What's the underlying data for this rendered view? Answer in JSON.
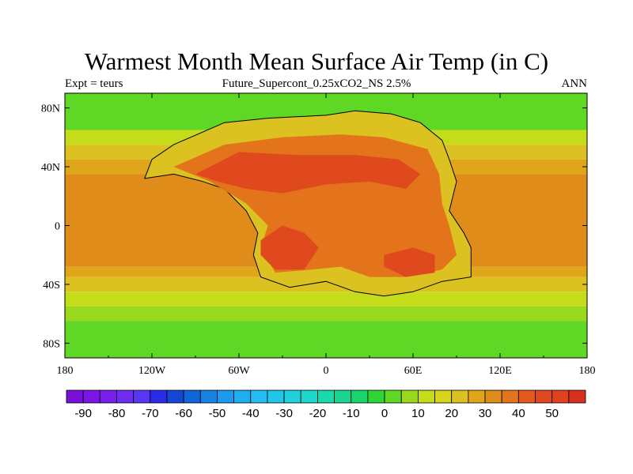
{
  "chart_data": {
    "type": "heatmap",
    "title": "Warmest Month Mean Surface Air Temp (in C)",
    "subtitle_center": "Future_Supercont_0.25xCO2_NS 2.5%",
    "subtitle_left": "Expt = teurs",
    "subtitle_right": "ANN",
    "projection": "cylindrical-equidistant",
    "xlim": [
      -180,
      180
    ],
    "ylim": [
      -90,
      90
    ],
    "x_ticks": [
      {
        "value": -180,
        "label": "180"
      },
      {
        "value": -120,
        "label": "120W"
      },
      {
        "value": -60,
        "label": "60W"
      },
      {
        "value": 0,
        "label": "0"
      },
      {
        "value": 60,
        "label": "60E"
      },
      {
        "value": 120,
        "label": "120E"
      },
      {
        "value": 180,
        "label": "180"
      }
    ],
    "y_ticks": [
      {
        "value": 80,
        "label": "80N"
      },
      {
        "value": 40,
        "label": "40N"
      },
      {
        "value": 0,
        "label": "0"
      },
      {
        "value": -40,
        "label": "40S"
      },
      {
        "value": -80,
        "label": "80S"
      }
    ],
    "zonal_bands": [
      {
        "lat_range": [
          65,
          90
        ],
        "value": 0
      },
      {
        "lat_range": [
          55,
          65
        ],
        "value": 10
      },
      {
        "lat_range": [
          45,
          55
        ],
        "value": 20
      },
      {
        "lat_range": [
          35,
          45
        ],
        "value": 25
      },
      {
        "lat_range": [
          -28,
          35
        ],
        "value": 30
      },
      {
        "lat_range": [
          -35,
          -28
        ],
        "value": 25
      },
      {
        "lat_range": [
          -45,
          -35
        ],
        "value": 20
      },
      {
        "lat_range": [
          -55,
          -45
        ],
        "value": 10
      },
      {
        "lat_range": [
          -65,
          -55
        ],
        "value": 5
      },
      {
        "lat_range": [
          -90,
          -65
        ],
        "value": 0
      }
    ],
    "land_regions": [
      {
        "label": "supercontinent-outer",
        "value": 20,
        "outline": [
          [
            -120,
            45
          ],
          [
            -105,
            55
          ],
          [
            -70,
            70
          ],
          [
            -40,
            73
          ],
          [
            0,
            75
          ],
          [
            20,
            78
          ],
          [
            45,
            76
          ],
          [
            65,
            70
          ],
          [
            80,
            58
          ],
          [
            85,
            45
          ],
          [
            90,
            30
          ],
          [
            85,
            10
          ],
          [
            95,
            -5
          ],
          [
            100,
            -15
          ],
          [
            100,
            -35
          ],
          [
            80,
            -38
          ],
          [
            60,
            -45
          ],
          [
            40,
            -48
          ],
          [
            20,
            -45
          ],
          [
            0,
            -38
          ],
          [
            -25,
            -42
          ],
          [
            -45,
            -35
          ],
          [
            -50,
            -20
          ],
          [
            -47,
            -5
          ],
          [
            -55,
            10
          ],
          [
            -70,
            25
          ],
          [
            -85,
            30
          ],
          [
            -105,
            35
          ],
          [
            -125,
            32
          ]
        ]
      },
      {
        "label": "supercontinent-warm",
        "value": 35,
        "outline": [
          [
            -105,
            40
          ],
          [
            -70,
            55
          ],
          [
            -30,
            60
          ],
          [
            10,
            62
          ],
          [
            40,
            60
          ],
          [
            70,
            52
          ],
          [
            78,
            35
          ],
          [
            80,
            15
          ],
          [
            85,
            0
          ],
          [
            90,
            -20
          ],
          [
            80,
            -30
          ],
          [
            55,
            -35
          ],
          [
            30,
            -35
          ],
          [
            10,
            -28
          ],
          [
            -10,
            -30
          ],
          [
            -35,
            -32
          ],
          [
            -45,
            -15
          ],
          [
            -40,
            0
          ],
          [
            -55,
            15
          ],
          [
            -80,
            30
          ]
        ]
      },
      {
        "label": "hot-core-north",
        "value": 45,
        "outline": [
          [
            -90,
            35
          ],
          [
            -60,
            50
          ],
          [
            -20,
            48
          ],
          [
            20,
            48
          ],
          [
            50,
            45
          ],
          [
            65,
            35
          ],
          [
            55,
            25
          ],
          [
            30,
            30
          ],
          [
            0,
            28
          ],
          [
            -30,
            22
          ],
          [
            -55,
            25
          ],
          [
            -75,
            30
          ]
        ]
      },
      {
        "label": "hot-core-southwest",
        "value": 45,
        "outline": [
          [
            -45,
            -10
          ],
          [
            -30,
            0
          ],
          [
            -15,
            -5
          ],
          [
            -5,
            -15
          ],
          [
            -15,
            -30
          ],
          [
            -35,
            -30
          ],
          [
            -45,
            -20
          ]
        ]
      },
      {
        "label": "hot-core-southeast",
        "value": 45,
        "outline": [
          [
            40,
            -20
          ],
          [
            60,
            -15
          ],
          [
            75,
            -20
          ],
          [
            75,
            -32
          ],
          [
            55,
            -35
          ],
          [
            40,
            -28
          ]
        ]
      }
    ],
    "colorbar": {
      "values": [
        -95,
        -90,
        -85,
        -80,
        -75,
        -70,
        -65,
        -60,
        -55,
        -50,
        -45,
        -40,
        -35,
        -30,
        -25,
        -20,
        -15,
        -10,
        -5,
        0,
        5,
        10,
        15,
        20,
        25,
        30,
        35,
        40,
        45,
        50,
        55
      ],
      "colors": [
        "#7a10d8",
        "#7c14e3",
        "#7a1eeb",
        "#6f2df2",
        "#5a35f5",
        "#2b2bea",
        "#1447d4",
        "#1065d8",
        "#1683e4",
        "#1c9bee",
        "#20aef2",
        "#24bcf2",
        "#22c6ea",
        "#1fd0dd",
        "#1fd6ca",
        "#1bd8ad",
        "#17d68f",
        "#1bd46b",
        "#2dd635",
        "#5ed824",
        "#9ad81e",
        "#c4dc1a",
        "#d8d41b",
        "#dcc220",
        "#e0a61a",
        "#e08c1a",
        "#e4741c",
        "#e45a1e",
        "#e0481e",
        "#e04220",
        "#d9311f"
      ],
      "labels": [
        {
          "value": -90,
          "label": "-90"
        },
        {
          "value": -80,
          "label": "-80"
        },
        {
          "value": -70,
          "label": "-70"
        },
        {
          "value": -60,
          "label": "-60"
        },
        {
          "value": -50,
          "label": "-50"
        },
        {
          "value": -40,
          "label": "-40"
        },
        {
          "value": -30,
          "label": "-30"
        },
        {
          "value": -20,
          "label": "-20"
        },
        {
          "value": -10,
          "label": "-10"
        },
        {
          "value": 0,
          "label": "0"
        },
        {
          "value": 10,
          "label": "10"
        },
        {
          "value": 20,
          "label": "20"
        },
        {
          "value": 30,
          "label": "30"
        },
        {
          "value": 40,
          "label": "40"
        },
        {
          "value": 50,
          "label": "50"
        }
      ]
    }
  }
}
